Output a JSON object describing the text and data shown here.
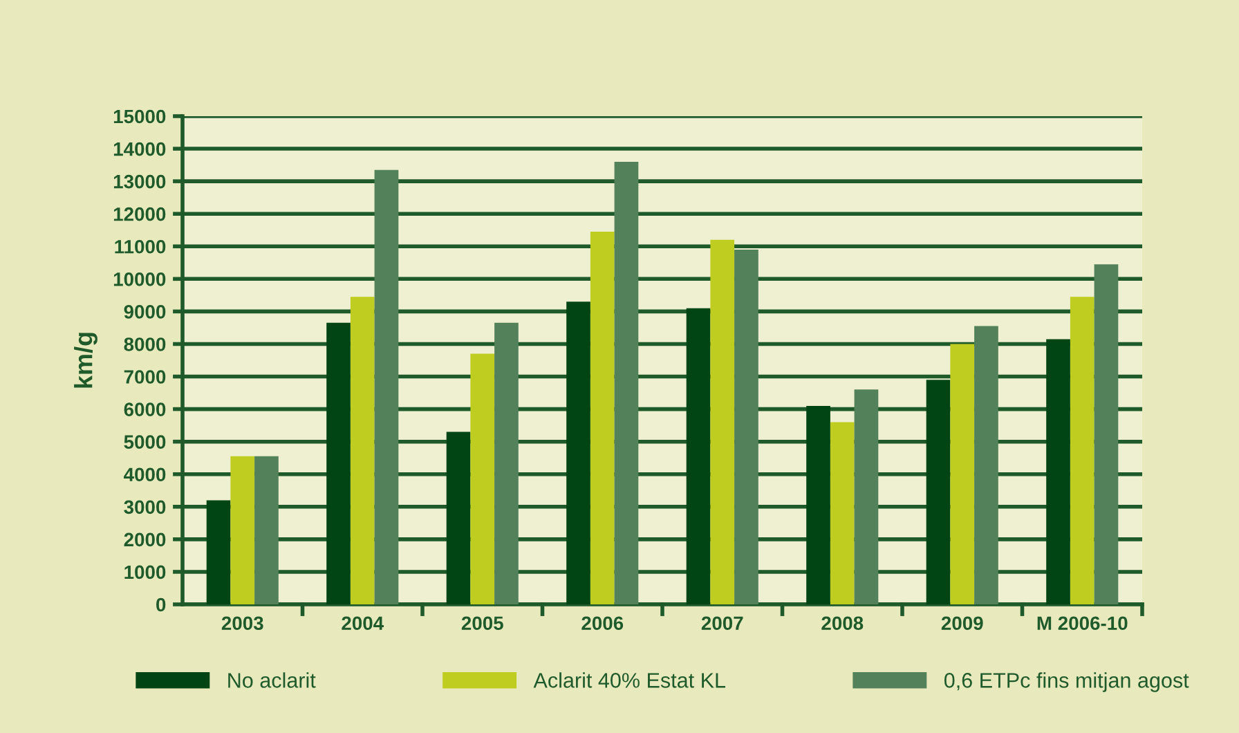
{
  "chart_data": {
    "type": "bar",
    "ylabel": "km/g",
    "categories": [
      "2003",
      "2004",
      "2005",
      "2006",
      "2007",
      "2008",
      "2009",
      "M 2006-10"
    ],
    "series": [
      {
        "name": "No aclarit",
        "color": "#004513",
        "values": [
          3200,
          8650,
          5300,
          9300,
          9100,
          6100,
          6900,
          8150
        ]
      },
      {
        "name": "Aclarit 40% Estat KL",
        "color": "#bfcc20",
        "values": [
          4550,
          9450,
          7700,
          11450,
          11200,
          5600,
          8000,
          9450
        ]
      },
      {
        "name": "0,6 ETPc fins mitjan agost",
        "color": "#53815a",
        "values": [
          4550,
          13350,
          8650,
          13600,
          10900,
          6600,
          8550,
          10450
        ]
      }
    ],
    "ylim": [
      0,
      15000
    ],
    "yticks": [
      0,
      1000,
      2000,
      3000,
      4000,
      5000,
      6000,
      7000,
      8000,
      9000,
      10000,
      11000,
      12000,
      13000,
      14000,
      15000
    ],
    "grid": "y",
    "legend": "bottom"
  }
}
